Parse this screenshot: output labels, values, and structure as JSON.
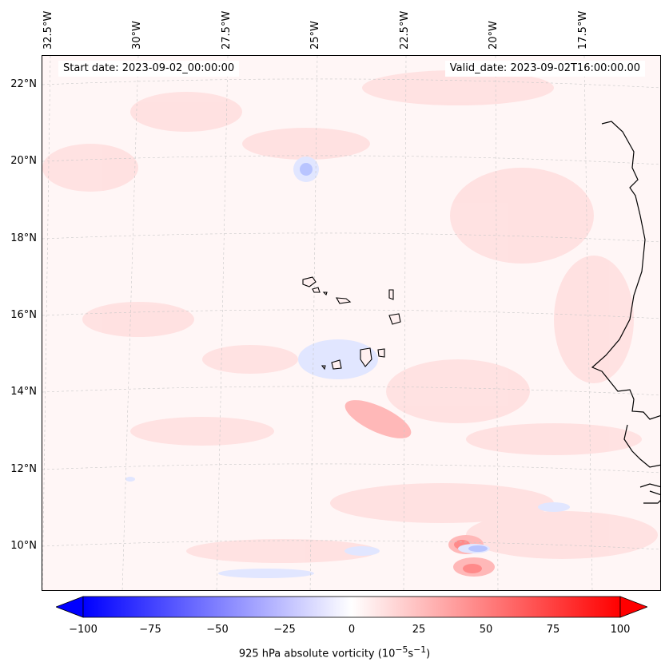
{
  "header": {
    "start_date": "Start date: 2023-09-02_00:00:00",
    "valid_date": "Valid_date: 2023-09-02T16:00:00.00"
  },
  "longitude_labels": [
    "32.5°W",
    "30°W",
    "27.5°W",
    "25°W",
    "22.5°W",
    "20°W",
    "17.5°W"
  ],
  "latitude_labels": [
    "22°N",
    "20°N",
    "18°N",
    "16°N",
    "14°N",
    "12°N",
    "10°N"
  ],
  "colorbar": {
    "ticks": [
      "−100",
      "−75",
      "−50",
      "−25",
      "0",
      "25",
      "50",
      "75",
      "100"
    ],
    "range": [
      -100,
      100
    ],
    "low_color": "#0000ff",
    "mid_color": "#ffffff",
    "high_color": "#ff0000",
    "label_main": "925 hPa absolute vorticity (10",
    "label_exp1": "−5",
    "label_mid": "s",
    "label_exp2": "−1",
    "label_end": ")"
  },
  "colors": {
    "background_field": "#fff4f4",
    "positive_field": "#ffd8d8",
    "negative_field": "#e6ebff",
    "coastline": "#000000",
    "gridline": "#c8c8c8"
  }
}
